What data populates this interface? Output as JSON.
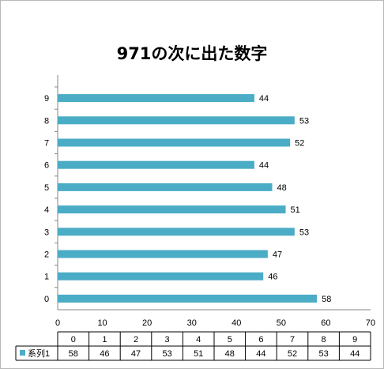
{
  "chart_data": {
    "type": "bar",
    "orientation": "horizontal",
    "title": "971の次に出た数字",
    "categories": [
      "0",
      "1",
      "2",
      "3",
      "4",
      "5",
      "6",
      "7",
      "8",
      "9"
    ],
    "series": [
      {
        "name": "系列1",
        "values": [
          58,
          46,
          47,
          53,
          51,
          48,
          44,
          52,
          53,
          44
        ]
      }
    ],
    "xlim": [
      0,
      70
    ],
    "x_ticks": [
      "0",
      "10",
      "20",
      "30",
      "40",
      "50",
      "60",
      "70"
    ],
    "data_labels": true,
    "data_table": true,
    "gridlines": false,
    "colors": {
      "series": "#4bacc6"
    }
  }
}
